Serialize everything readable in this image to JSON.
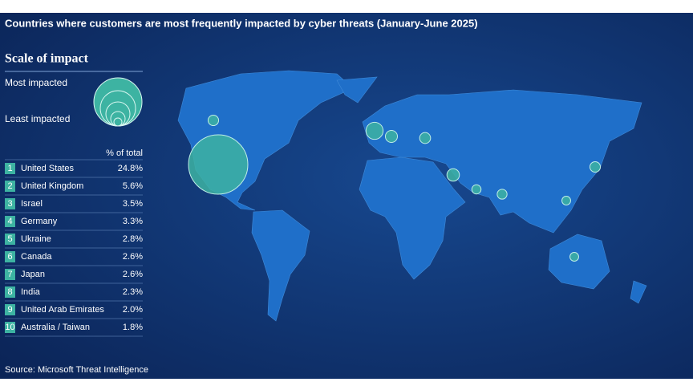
{
  "header": {
    "title": "Countries where customers are most frequently impacted by cyber threats  (January-June 2025)"
  },
  "legend": {
    "title": "Scale of impact",
    "most": "Most impacted",
    "least": "Least impacted"
  },
  "table": {
    "column_header": "% of total",
    "rows": [
      {
        "rank": "1",
        "country": "United States",
        "share": 24.8,
        "share_label": "24.8%"
      },
      {
        "rank": "2",
        "country": "United Kingdom",
        "share": 5.6,
        "share_label": "5.6%"
      },
      {
        "rank": "3",
        "country": "Israel",
        "share": 3.5,
        "share_label": "3.5%"
      },
      {
        "rank": "4",
        "country": "Germany",
        "share": 3.3,
        "share_label": "3.3%"
      },
      {
        "rank": "5",
        "country": "Ukraine",
        "share": 2.8,
        "share_label": "2.8%"
      },
      {
        "rank": "6",
        "country": "Canada",
        "share": 2.6,
        "share_label": "2.6%"
      },
      {
        "rank": "7",
        "country": "Japan",
        "share": 2.6,
        "share_label": "2.6%"
      },
      {
        "rank": "8",
        "country": "India",
        "share": 2.3,
        "share_label": "2.3%"
      },
      {
        "rank": "9",
        "country": "United Arab Emirates",
        "share": 2.0,
        "share_label": "2.0%"
      },
      {
        "rank": "10",
        "country": "Australia / Taiwan",
        "share": 1.8,
        "share_label": "1.8%"
      }
    ]
  },
  "footer": {
    "source": "Source: Microsoft Threat Intelligence"
  }
}
